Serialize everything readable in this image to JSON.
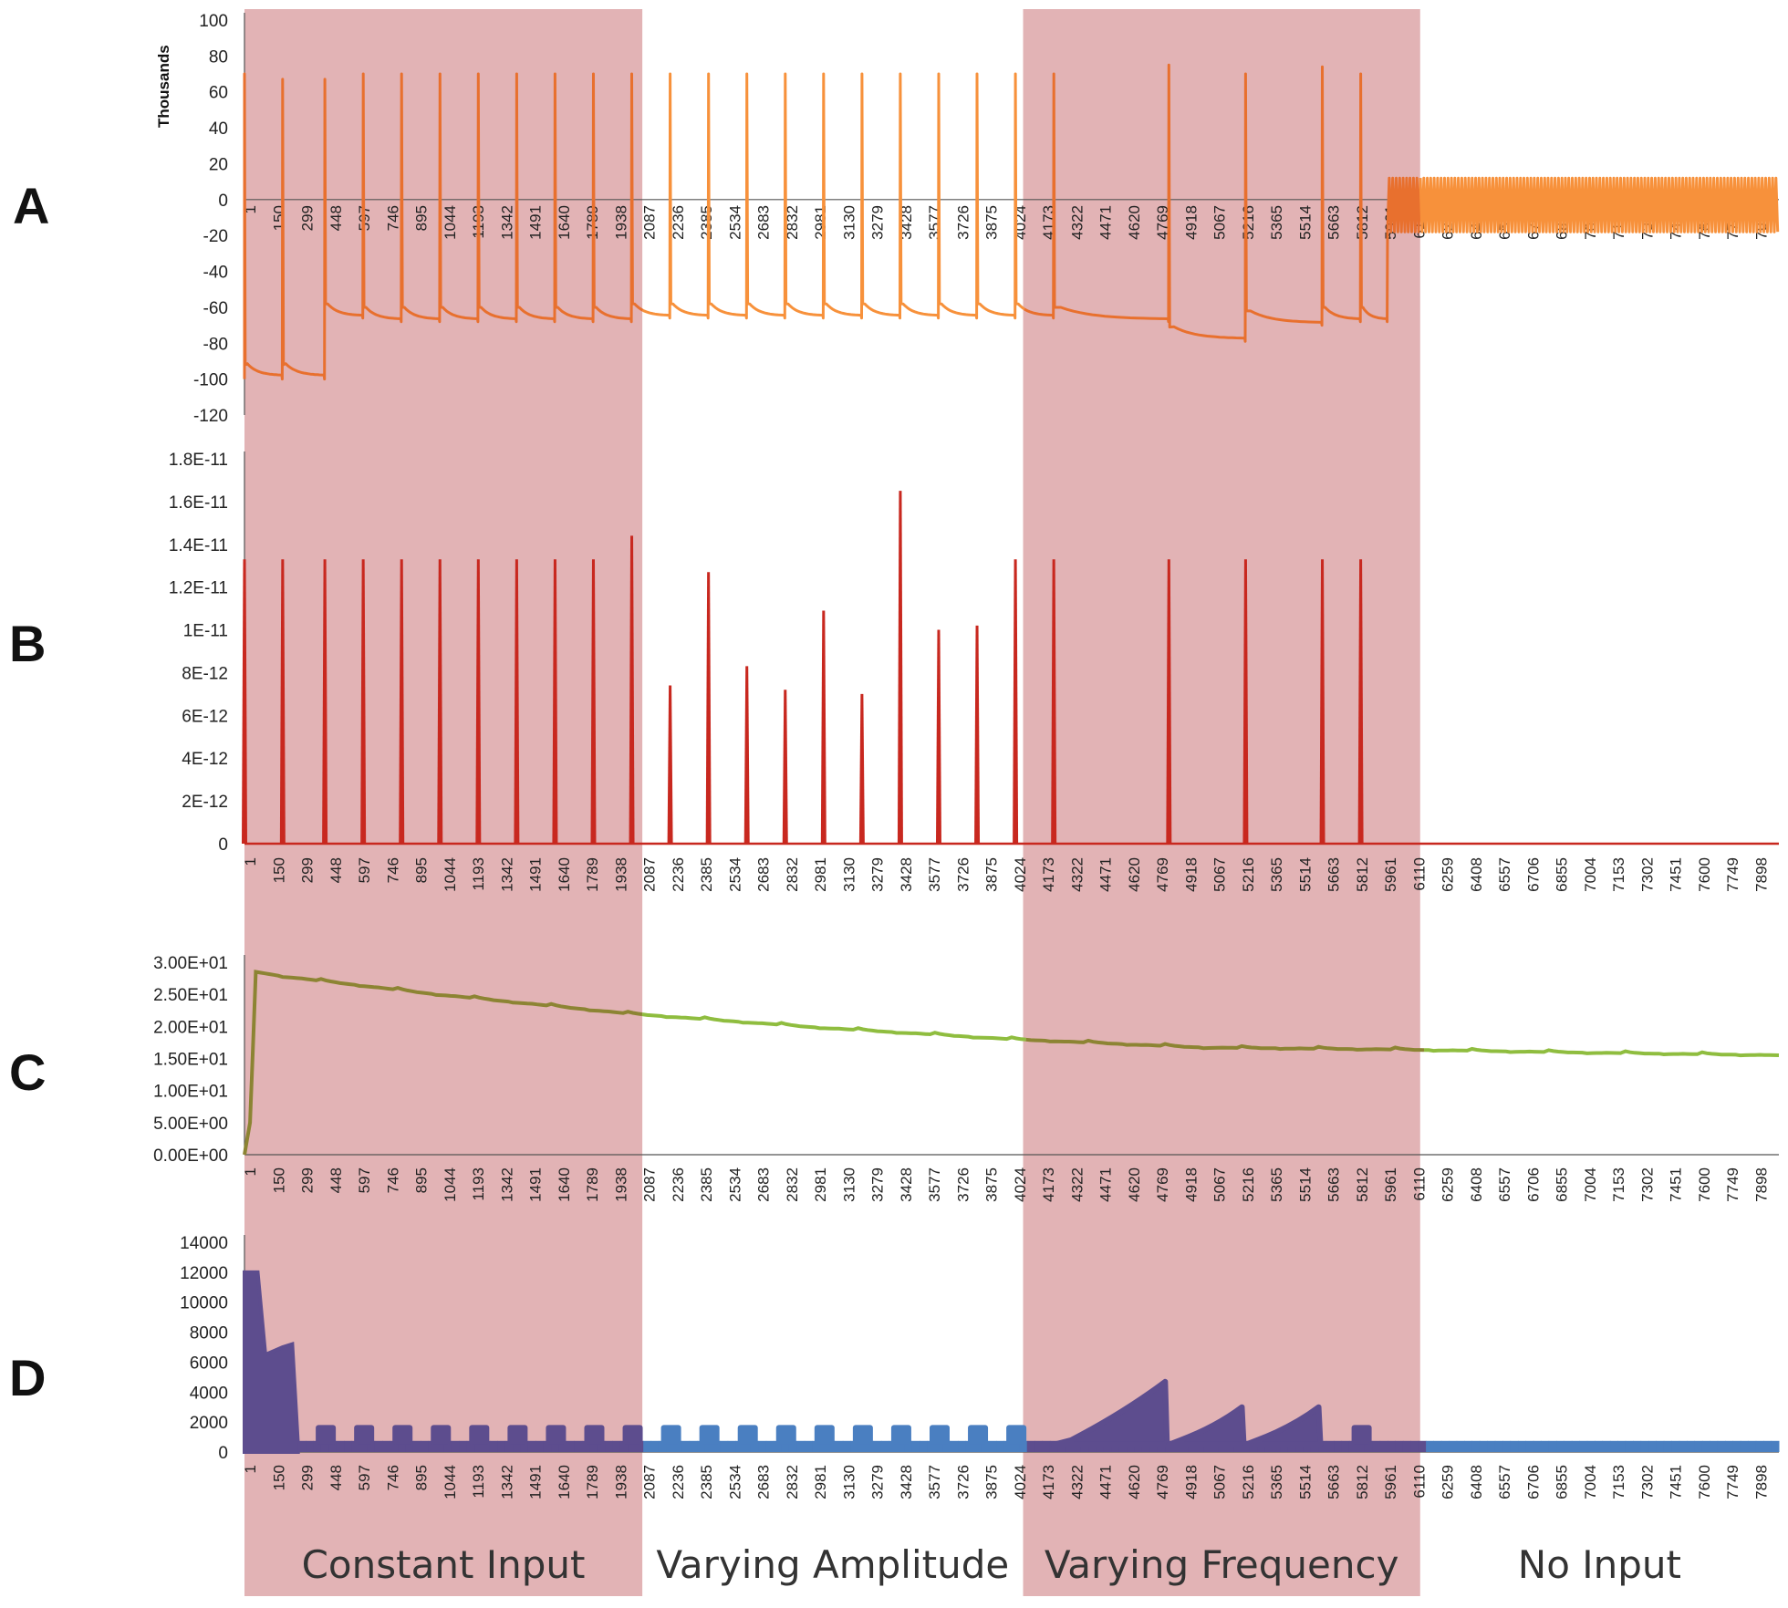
{
  "colors": {
    "shade": "#e2b3b5",
    "panel_a_line": "#f7913b",
    "panel_a_line_shaded": "#e8702e",
    "panel_b_line": "#c8281f",
    "panel_c_line": "#8fbd3f",
    "panel_c_line_shaded": "#8c8433",
    "panel_d_line": "#4a7fc1",
    "panel_d_line_shaded": "#5d4d8e",
    "axis": "#555555"
  },
  "chart_data": [
    {
      "panel": "A",
      "type": "line",
      "unit_label": "Thousands",
      "ylim": [
        -120,
        100
      ],
      "yticks": [
        "100",
        "80",
        "60",
        "40",
        "20",
        "0",
        "-20",
        "-40",
        "-60",
        "-80",
        "-100",
        "-120"
      ],
      "xlim": [
        1,
        8000
      ],
      "x_axis_at": 0,
      "xticks": [
        "1",
        "150",
        "299",
        "448",
        "597",
        "746",
        "895",
        "1044",
        "1193",
        "1342",
        "1491",
        "1640",
        "1789",
        "1938",
        "2087",
        "2236",
        "2385",
        "2534",
        "2683",
        "2832",
        "2981",
        "3130",
        "3279",
        "3428",
        "3577",
        "3726",
        "3875",
        "4024",
        "4173",
        "4322",
        "4471",
        "4620",
        "4769",
        "4918",
        "5067",
        "5216",
        "5365",
        "5514",
        "5663",
        "5812",
        "5961",
        "6110",
        "6259",
        "6408",
        "6557",
        "6706",
        "6855",
        "7004",
        "7153",
        "7302",
        "7451",
        "7600",
        "7749",
        "7898"
      ],
      "spike_times": [
        1,
        200,
        420,
        620,
        820,
        1020,
        1220,
        1420,
        1620,
        1820,
        2020,
        2220,
        2420,
        2620,
        2820,
        3020,
        3220,
        3420,
        3620,
        3820,
        4020,
        4220,
        4820,
        5220,
        5620,
        5820
      ],
      "spike_peaks": [
        70,
        67,
        67,
        70,
        70,
        70,
        70,
        70,
        70,
        70,
        70,
        70,
        70,
        70,
        70,
        70,
        70,
        70,
        70,
        70,
        70,
        70,
        75,
        70,
        74,
        70
      ],
      "reset_levels": [
        -100,
        -100,
        -66,
        -68,
        -68,
        -68,
        -68,
        -68,
        -68,
        -68,
        -66,
        -66,
        -66,
        -66,
        -66,
        -66,
        -66,
        -66,
        -66,
        -66,
        -66,
        -68,
        -79,
        -70,
        -68,
        -68
      ],
      "no_input_oscillation": {
        "start": 5960,
        "end": 8000,
        "min": -18,
        "max": 12
      }
    },
    {
      "panel": "B",
      "type": "line",
      "ylim": [
        0,
        1.8e-11
      ],
      "yticks": [
        "1.8E-11",
        "1.6E-11",
        "1.4E-11",
        "1.2E-11",
        "1E-11",
        "8E-12",
        "6E-12",
        "4E-12",
        "2E-12",
        "0"
      ],
      "xlim": [
        1,
        8000
      ],
      "xticks": [
        "1",
        "150",
        "299",
        "448",
        "597",
        "746",
        "895",
        "1044",
        "1193",
        "1342",
        "1491",
        "1640",
        "1789",
        "1938",
        "2087",
        "2236",
        "2385",
        "2534",
        "2683",
        "2832",
        "2981",
        "3130",
        "3279",
        "3428",
        "3577",
        "3726",
        "3875",
        "4024",
        "4173",
        "4322",
        "4471",
        "4620",
        "4769",
        "4918",
        "5067",
        "5216",
        "5365",
        "5514",
        "5663",
        "5812",
        "5961",
        "6110",
        "6259",
        "6408",
        "6557",
        "6706",
        "6855",
        "7004",
        "7153",
        "7302",
        "7451",
        "7600",
        "7749",
        "7898"
      ],
      "spike_times": [
        1,
        200,
        420,
        620,
        820,
        1020,
        1220,
        1420,
        1620,
        1820,
        2020,
        2220,
        2420,
        2620,
        2820,
        3020,
        3220,
        3420,
        3620,
        3820,
        4020,
        4220,
        4820,
        5220,
        5620,
        5820
      ],
      "values": [
        1.33e-11,
        1.33e-11,
        1.33e-11,
        1.33e-11,
        1.33e-11,
        1.33e-11,
        1.33e-11,
        1.33e-11,
        1.33e-11,
        1.33e-11,
        1.44e-11,
        7.4e-12,
        1.27e-11,
        8.3e-12,
        7.2e-12,
        1.09e-11,
        7e-12,
        1.65e-11,
        1e-11,
        1.02e-11,
        1.33e-11,
        1.33e-11,
        1.33e-11,
        1.33e-11,
        1.33e-11,
        1.33e-11
      ]
    },
    {
      "panel": "C",
      "type": "line",
      "ylim": [
        0,
        30
      ],
      "yticks": [
        "3.00E+01",
        "2.50E+01",
        "2.00E+01",
        "1.50E+01",
        "1.00E+01",
        "5.00E+00",
        "0.00E+00"
      ],
      "xlim": [
        1,
        8000
      ],
      "xticks": [
        "1",
        "150",
        "299",
        "448",
        "597",
        "746",
        "895",
        "1044",
        "1193",
        "1342",
        "1491",
        "1640",
        "1789",
        "1938",
        "2087",
        "2236",
        "2385",
        "2534",
        "2683",
        "2832",
        "2981",
        "3130",
        "3279",
        "3428",
        "3577",
        "3726",
        "3875",
        "4024",
        "4173",
        "4322",
        "4471",
        "4620",
        "4769",
        "4918",
        "5067",
        "5216",
        "5365",
        "5514",
        "5663",
        "5812",
        "5961",
        "6110",
        "6259",
        "6408",
        "6557",
        "6706",
        "6855",
        "7004",
        "7153",
        "7302",
        "7451",
        "7600",
        "7749",
        "7898"
      ],
      "x": [
        1,
        30,
        60,
        200,
        1000,
        2000,
        3000,
        4000,
        5000,
        6000,
        7000,
        8000
      ],
      "values": [
        0,
        5,
        28.5,
        27.8,
        25.0,
        22.0,
        19.8,
        18.0,
        16.7,
        16.4,
        15.9,
        15.5
      ]
    },
    {
      "panel": "D",
      "type": "area",
      "ylim": [
        0,
        14000
      ],
      "yticks": [
        "14000",
        "12000",
        "10000",
        "8000",
        "6000",
        "4000",
        "2000",
        "0"
      ],
      "xlim": [
        1,
        8000
      ],
      "xticks": [
        "1",
        "150",
        "299",
        "448",
        "597",
        "746",
        "895",
        "1044",
        "1193",
        "1342",
        "1491",
        "1640",
        "1789",
        "1938",
        "2087",
        "2236",
        "2385",
        "2534",
        "2683",
        "2832",
        "2981",
        "3130",
        "3279",
        "3428",
        "3577",
        "3726",
        "3875",
        "4024",
        "4173",
        "4322",
        "4471",
        "4620",
        "4769",
        "4918",
        "5067",
        "5216",
        "5365",
        "5514",
        "5663",
        "5812",
        "5961",
        "6110",
        "6259",
        "6408",
        "6557",
        "6706",
        "6855",
        "7004",
        "7153",
        "7302",
        "7451",
        "7600",
        "7749",
        "7898"
      ],
      "initial": [
        {
          "x": 1,
          "y": 12000
        },
        {
          "x": 70,
          "y": 12000
        },
        {
          "x": 110,
          "y": 6500
        },
        {
          "x": 200,
          "y": 7000
        },
        {
          "x": 250,
          "y": 7200
        },
        {
          "x": 280,
          "y": 500
        }
      ],
      "baseline": 500,
      "bump_times": [
        420,
        620,
        820,
        1020,
        1220,
        1420,
        1620,
        1820,
        2020,
        2220,
        2420,
        2620,
        2820,
        3020,
        3220,
        3420,
        3620,
        3820,
        4020,
        5820
      ],
      "bump_height": 1800,
      "ramps": [
        {
          "start": 4220,
          "end": 4820,
          "peak": 4700
        },
        {
          "start": 4820,
          "end": 5220,
          "peak": 3000
        },
        {
          "start": 5220,
          "end": 5620,
          "peak": 3000
        }
      ]
    }
  ],
  "regions": [
    {
      "label": "Constant Input",
      "x_start": 1,
      "x_end": 2075,
      "shaded": true
    },
    {
      "label": "Varying Amplitude",
      "x_start": 2075,
      "x_end": 4060,
      "shaded": false
    },
    {
      "label": "Varying Frequency",
      "x_start": 4060,
      "x_end": 6130,
      "shaded": true
    },
    {
      "label": "No Input",
      "x_start": 6130,
      "x_end": 8000,
      "shaded": false
    }
  ]
}
